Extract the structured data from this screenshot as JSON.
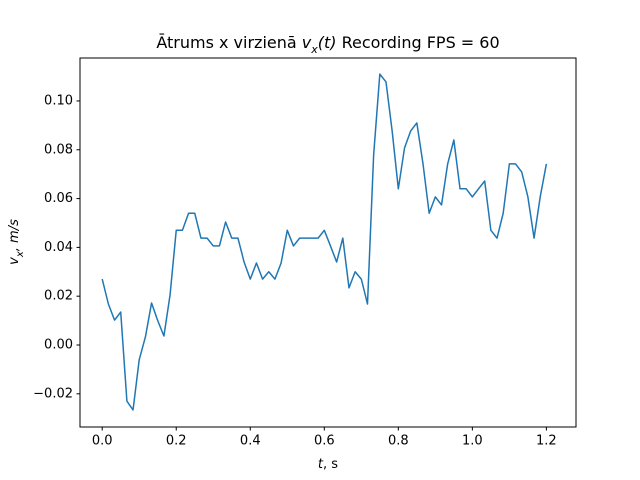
{
  "chart_data": {
    "type": "line",
    "title": [
      "Ātrums x virzienā ",
      "v",
      "x",
      "(t)",
      " Recording FPS = 60"
    ],
    "xlabel": [
      "t",
      ", s"
    ],
    "ylabel": [
      "v",
      "x",
      ", m/s"
    ],
    "x": [
      0,
      0.0167,
      0.0333,
      0.05,
      0.0667,
      0.0833,
      0.1,
      0.1167,
      0.1333,
      0.15,
      0.1667,
      0.1833,
      0.2,
      0.2167,
      0.2333,
      0.25,
      0.2667,
      0.2833,
      0.3,
      0.3167,
      0.3333,
      0.35,
      0.3667,
      0.3833,
      0.4,
      0.4167,
      0.4333,
      0.45,
      0.4667,
      0.4833,
      0.5,
      0.5167,
      0.5333,
      0.55,
      0.5667,
      0.5833,
      0.6,
      0.6167,
      0.6333,
      0.65,
      0.6667,
      0.6833,
      0.7,
      0.7167,
      0.7333,
      0.75,
      0.7667,
      0.7833,
      0.8,
      0.8167,
      0.8333,
      0.85,
      0.8667,
      0.8833,
      0.9,
      0.9167,
      0.9333,
      0.95,
      0.9667,
      0.9833,
      1.0,
      1.0167,
      1.0333,
      1.05,
      1.0667,
      1.0833,
      1.1,
      1.1167,
      1.1333,
      1.15,
      1.1667,
      1.1833,
      1.2
    ],
    "series": [
      {
        "color": "#1f77b4",
        "values": [
          0.027,
          0.0168,
          0.0102,
          0.0135,
          -0.023,
          -0.0266,
          -0.006,
          0.0033,
          0.0172,
          0.01,
          0.0037,
          0.0205,
          0.047,
          0.047,
          0.054,
          0.054,
          0.0438,
          0.0438,
          0.0406,
          0.0406,
          0.0504,
          0.0438,
          0.0438,
          0.034,
          0.027,
          0.0336,
          0.027,
          0.03,
          0.027,
          0.0336,
          0.047,
          0.0406,
          0.0438,
          0.0438,
          0.0438,
          0.0438,
          0.047,
          0.0406,
          0.034,
          0.0438,
          0.0234,
          0.03,
          0.027,
          0.0168,
          0.0779,
          0.111,
          0.1078,
          0.0877,
          0.064,
          0.0807,
          0.0877,
          0.091,
          0.0742,
          0.054,
          0.0607,
          0.0574,
          0.0742,
          0.084,
          0.064,
          0.064,
          0.0607,
          0.064,
          0.0672,
          0.047,
          0.0438,
          0.054,
          0.0742,
          0.0742,
          0.0709,
          0.0607,
          0.0438,
          0.0607,
          0.0742
        ]
      }
    ],
    "xlim": [
      -0.06,
      1.28
    ],
    "ylim": [
      -0.0336,
      0.1176
    ],
    "xticks": [
      {
        "value": 0,
        "label": "0.0"
      },
      0.2,
      0.4,
      0.6,
      0.8,
      {
        "value": 1,
        "label": "1.0"
      },
      1.2
    ],
    "yticks": [
      {
        "value": -0.02,
        "label": "−0.02"
      },
      {
        "value": 0,
        "label": "0.00"
      },
      0.02,
      0.04,
      0.06,
      0.08,
      {
        "value": 0.1,
        "label": "0.10"
      }
    ],
    "grid": false
  }
}
